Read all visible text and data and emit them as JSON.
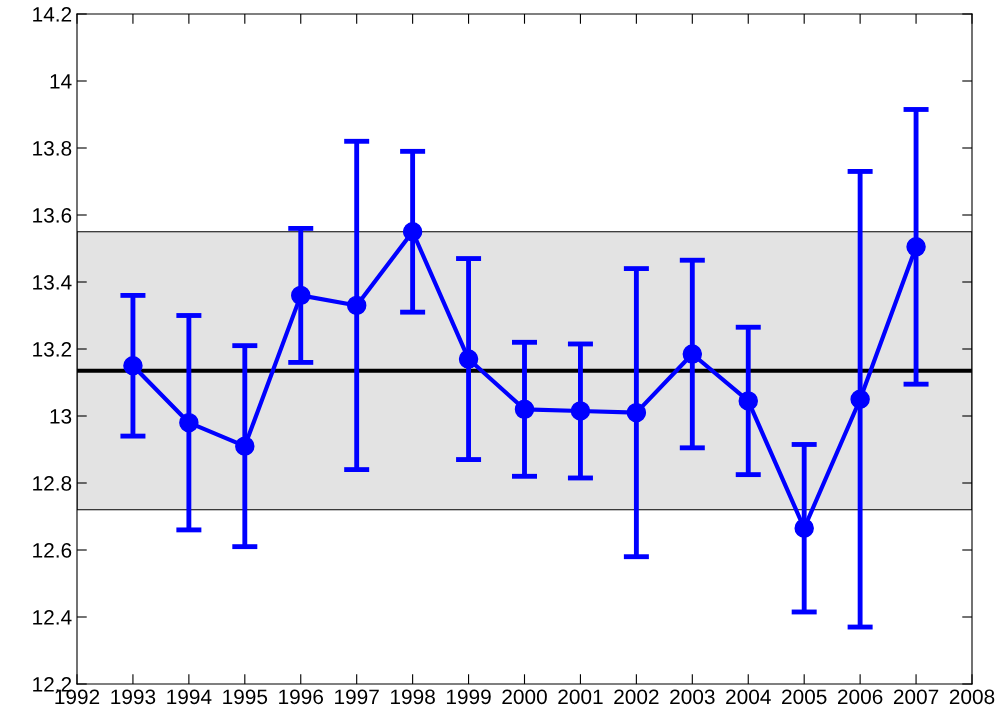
{
  "chart_data": {
    "type": "line",
    "x": [
      1993,
      1994,
      1995,
      1996,
      1997,
      1998,
      1999,
      2000,
      2001,
      2002,
      2003,
      2004,
      2005,
      2006,
      2007
    ],
    "series": [
      {
        "color": "#0000ff",
        "values": [
          13.15,
          12.98,
          12.91,
          13.36,
          13.33,
          13.55,
          13.17,
          13.02,
          13.015,
          13.01,
          13.185,
          13.045,
          12.665,
          13.05,
          13.505
        ],
        "errors": [
          0.21,
          0.32,
          0.3,
          0.2,
          0.49,
          0.24,
          0.3,
          0.2,
          0.2,
          0.43,
          0.28,
          0.22,
          0.25,
          0.68,
          0.41
        ]
      }
    ],
    "marker": "circle",
    "line_style": "solid",
    "xlim": [
      1992,
      2008
    ],
    "xticks": [
      1992,
      1993,
      1994,
      1995,
      1996,
      1997,
      1998,
      1999,
      2000,
      2001,
      2002,
      2003,
      2004,
      2005,
      2006,
      2007,
      2008
    ],
    "ylim": [
      12.2,
      14.2
    ],
    "yticks": [
      12.2,
      12.4,
      12.6,
      12.8,
      13,
      13.2,
      13.4,
      13.6,
      13.8,
      14,
      14.2
    ],
    "ref_lines": [
      {
        "axis": "y",
        "value": 13.135,
        "color": "#000000",
        "line_style": "solid"
      }
    ],
    "bands": [
      {
        "axis": "y",
        "from": 12.72,
        "to": 13.55,
        "color": "#e3e3e3"
      }
    ],
    "grid": false,
    "legend": false
  }
}
